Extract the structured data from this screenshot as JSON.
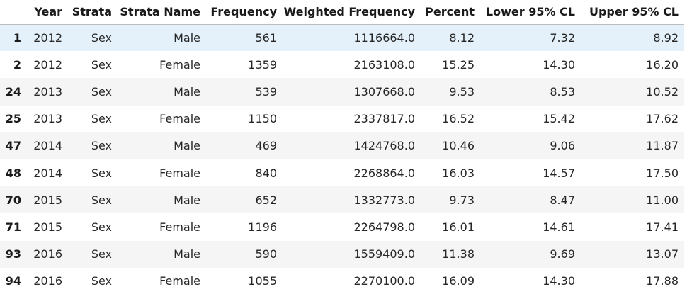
{
  "table": {
    "index_header": "",
    "columns": [
      "Year",
      "Strata",
      "Strata Name",
      "Frequency",
      "Weighted Frequency",
      "Percent",
      "Lower 95% CL",
      "Upper 95% CL"
    ],
    "rows": [
      {
        "index": "1",
        "cells": [
          "2012",
          "Sex",
          "Male",
          "561",
          "1116664.0",
          "8.12",
          "7.32",
          "8.92"
        ]
      },
      {
        "index": "2",
        "cells": [
          "2012",
          "Sex",
          "Female",
          "1359",
          "2163108.0",
          "15.25",
          "14.30",
          "16.20"
        ]
      },
      {
        "index": "24",
        "cells": [
          "2013",
          "Sex",
          "Male",
          "539",
          "1307668.0",
          "9.53",
          "8.53",
          "10.52"
        ]
      },
      {
        "index": "25",
        "cells": [
          "2013",
          "Sex",
          "Female",
          "1150",
          "2337817.0",
          "16.52",
          "15.42",
          "17.62"
        ]
      },
      {
        "index": "47",
        "cells": [
          "2014",
          "Sex",
          "Male",
          "469",
          "1424768.0",
          "10.46",
          "9.06",
          "11.87"
        ]
      },
      {
        "index": "48",
        "cells": [
          "2014",
          "Sex",
          "Female",
          "840",
          "2268864.0",
          "16.03",
          "14.57",
          "17.50"
        ]
      },
      {
        "index": "70",
        "cells": [
          "2015",
          "Sex",
          "Male",
          "652",
          "1332773.0",
          "9.73",
          "8.47",
          "11.00"
        ]
      },
      {
        "index": "71",
        "cells": [
          "2015",
          "Sex",
          "Female",
          "1196",
          "2264798.0",
          "16.01",
          "14.61",
          "17.41"
        ]
      },
      {
        "index": "93",
        "cells": [
          "2016",
          "Sex",
          "Male",
          "590",
          "1559409.0",
          "11.38",
          "9.69",
          "13.07"
        ]
      },
      {
        "index": "94",
        "cells": [
          "2016",
          "Sex",
          "Female",
          "1055",
          "2270100.0",
          "16.09",
          "14.30",
          "17.88"
        ]
      }
    ],
    "hovered_row": 0
  },
  "colors": {
    "stripe": "#f5f5f5",
    "hover": "#e4f1fa",
    "header_rule": "#bdbdbd"
  }
}
